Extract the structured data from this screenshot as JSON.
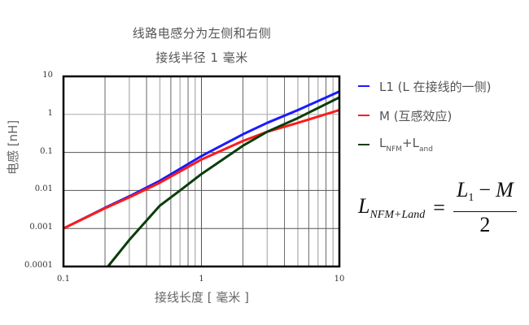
{
  "chart": {
    "title_line1": "线路电感分为左侧和右侧",
    "title_line2": "接线半径 1 毫米",
    "xlabel": "接线长度 [ 毫米 ]",
    "ylabel": "电感 [nH]",
    "x_ticks": [
      "0.1",
      "1",
      "10"
    ],
    "y_ticks": [
      "10",
      "1",
      "0.1",
      "0.01",
      "0.001",
      "0.0001"
    ]
  },
  "legend": {
    "items": [
      {
        "label": "L1 (L 在接线的一侧)",
        "color": "#1a1aff"
      },
      {
        "label": "M (互感效应)",
        "color": "#ff1a1a"
      },
      {
        "label_main": "L",
        "label_sub1": "NFM",
        "label_plus": "+L",
        "label_sub2": "and",
        "color": "#0a3d0a"
      }
    ]
  },
  "formula": {
    "lhs": "L",
    "lhs_sub": "NFM+Land",
    "eq": "=",
    "num_l": "L",
    "num_l_sub": "1",
    "num_op": "−",
    "num_m": "M",
    "den": "2"
  },
  "chart_data": {
    "type": "line",
    "title": "线路电感分为左侧和右侧 / 接线半径 1 毫米",
    "xlabel": "接线长度 [ 毫米 ]",
    "ylabel": "电感 [nH]",
    "xscale": "log",
    "yscale": "log",
    "xlim": [
      0.1,
      10
    ],
    "ylim": [
      0.0001,
      10
    ],
    "grid": true,
    "legend_position": "right",
    "series": [
      {
        "name": "L1 (L 在接线的一侧)",
        "color": "#1a1aff",
        "x": [
          0.1,
          0.2,
          0.3,
          0.5,
          1,
          2,
          3,
          5,
          10
        ],
        "y": [
          0.001,
          0.0035,
          0.007,
          0.018,
          0.08,
          0.3,
          0.6,
          1.3,
          4.0
        ]
      },
      {
        "name": "M (互感效应)",
        "color": "#ff1a1a",
        "x": [
          0.1,
          0.2,
          0.3,
          0.5,
          1,
          2,
          3,
          5,
          10
        ],
        "y": [
          0.001,
          0.0034,
          0.0066,
          0.016,
          0.065,
          0.2,
          0.35,
          0.6,
          1.3
        ]
      },
      {
        "name": "L_NFM + L_and",
        "color": "#0a3d0a",
        "x": [
          0.21,
          0.3,
          0.5,
          0.7,
          1,
          2,
          3,
          5,
          10
        ],
        "y": [
          0.0001,
          0.0005,
          0.004,
          0.01,
          0.027,
          0.15,
          0.35,
          0.8,
          2.8
        ]
      }
    ]
  }
}
